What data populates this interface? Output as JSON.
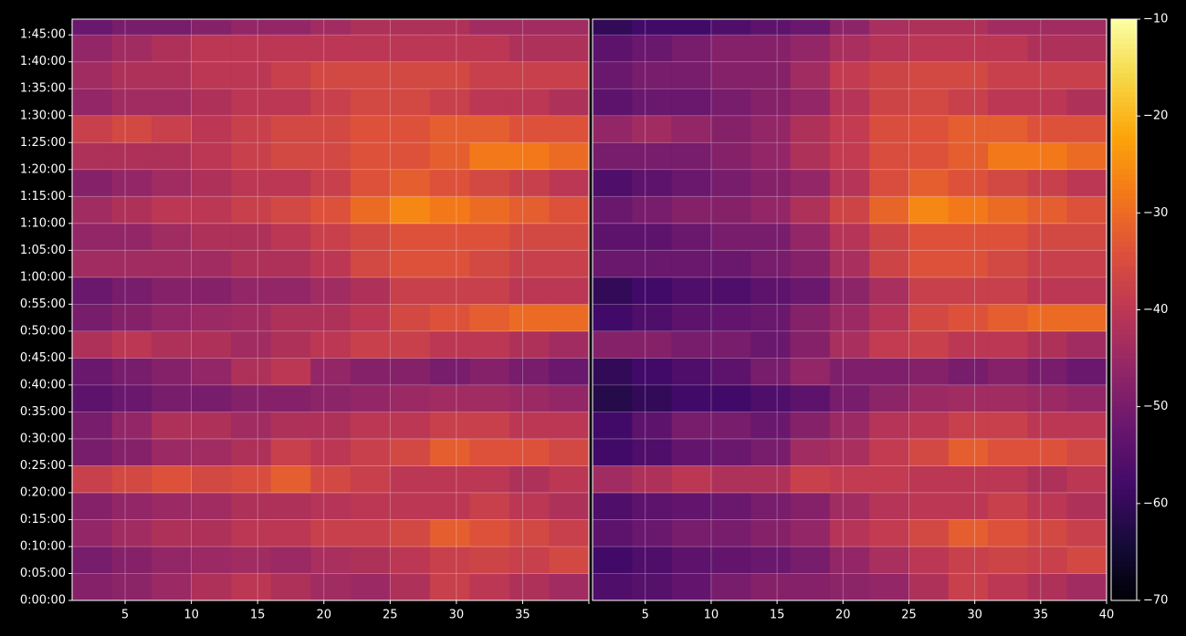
{
  "chart_data": {
    "type": "heatmap",
    "colormap": "inferno",
    "grid": true,
    "x_edges": [
      1,
      4,
      7,
      10,
      13,
      16,
      19,
      22,
      25,
      28,
      31,
      34,
      37,
      40
    ],
    "y_edges": [
      0,
      300,
      600,
      900,
      1200,
      1500,
      1800,
      2100,
      2400,
      2700,
      3000,
      3300,
      3600,
      3900,
      4200,
      4500,
      4800,
      5100,
      5400,
      5700,
      6000,
      6300,
      6600
    ],
    "xlim": [
      1,
      40
    ],
    "ylim": [
      0,
      6475
    ],
    "xticks": [
      5,
      10,
      15,
      20,
      25,
      30,
      35,
      40
    ],
    "yticks": [
      {
        "value": 0,
        "label": "0:00:00"
      },
      {
        "value": 300,
        "label": "0:05:00"
      },
      {
        "value": 600,
        "label": "0:10:00"
      },
      {
        "value": 900,
        "label": "0:15:00"
      },
      {
        "value": 1200,
        "label": "0:20:00"
      },
      {
        "value": 1500,
        "label": "0:25:00"
      },
      {
        "value": 1800,
        "label": "0:30:00"
      },
      {
        "value": 2100,
        "label": "0:35:00"
      },
      {
        "value": 2400,
        "label": "0:40:00"
      },
      {
        "value": 2700,
        "label": "0:45:00"
      },
      {
        "value": 3000,
        "label": "0:50:00"
      },
      {
        "value": 3300,
        "label": "0:55:00"
      },
      {
        "value": 3600,
        "label": "1:00:00"
      },
      {
        "value": 3900,
        "label": "1:05:00"
      },
      {
        "value": 4200,
        "label": "1:10:00"
      },
      {
        "value": 4500,
        "label": "1:15:00"
      },
      {
        "value": 4800,
        "label": "1:20:00"
      },
      {
        "value": 5100,
        "label": "1:25:00"
      },
      {
        "value": 5400,
        "label": "1:30:00"
      },
      {
        "value": 5700,
        "label": "1:35:00"
      },
      {
        "value": 6000,
        "label": "1:40:00"
      },
      {
        "value": 6300,
        "label": "1:45:00"
      }
    ],
    "colorbar": {
      "lim": [
        -70,
        -10
      ],
      "ticks": [
        {
          "value": -10,
          "label": "−10"
        },
        {
          "value": -20,
          "label": "−20"
        },
        {
          "value": -30,
          "label": "−30"
        },
        {
          "value": -40,
          "label": "−40"
        },
        {
          "value": -50,
          "label": "−50"
        },
        {
          "value": -60,
          "label": "−60"
        },
        {
          "value": -70,
          "label": "−70"
        }
      ]
    },
    "panels": [
      {
        "z": [
          [
            -48,
            -47,
            -45,
            -42,
            -40,
            -42,
            -44,
            -45,
            -42,
            -38,
            -40,
            -42,
            -44
          ],
          [
            -50,
            -48,
            -46,
            -45,
            -44,
            -45,
            -43,
            -42,
            -40,
            -38,
            -37,
            -38,
            -36
          ],
          [
            -46,
            -44,
            -42,
            -42,
            -40,
            -40,
            -38,
            -38,
            -36,
            -32,
            -34,
            -36,
            -38
          ],
          [
            -48,
            -46,
            -45,
            -44,
            -42,
            -42,
            -41,
            -40,
            -40,
            -40,
            -38,
            -40,
            -42
          ],
          [
            -38,
            -36,
            -34,
            -36,
            -35,
            -32,
            -36,
            -38,
            -40,
            -40,
            -40,
            -42,
            -40
          ],
          [
            -50,
            -48,
            -45,
            -44,
            -42,
            -38,
            -40,
            -38,
            -36,
            -32,
            -34,
            -34,
            -36
          ],
          [
            -50,
            -46,
            -42,
            -42,
            -44,
            -42,
            -42,
            -40,
            -40,
            -38,
            -38,
            -40,
            -40
          ],
          [
            -54,
            -52,
            -50,
            -50,
            -48,
            -48,
            -47,
            -46,
            -45,
            -44,
            -44,
            -45,
            -46
          ],
          [
            -52,
            -50,
            -48,
            -46,
            -42,
            -40,
            -46,
            -48,
            -48,
            -50,
            -48,
            -50,
            -52
          ],
          [
            -42,
            -40,
            -42,
            -42,
            -44,
            -42,
            -40,
            -38,
            -38,
            -40,
            -40,
            -42,
            -44
          ],
          [
            -50,
            -48,
            -46,
            -45,
            -44,
            -42,
            -42,
            -40,
            -36,
            -34,
            -32,
            -30,
            -30
          ],
          [
            -52,
            -50,
            -48,
            -48,
            -46,
            -46,
            -44,
            -42,
            -38,
            -38,
            -38,
            -40,
            -40
          ],
          [
            -44,
            -44,
            -44,
            -44,
            -42,
            -42,
            -40,
            -36,
            -34,
            -34,
            -36,
            -38,
            -38
          ],
          [
            -46,
            -46,
            -44,
            -42,
            -42,
            -40,
            -38,
            -36,
            -34,
            -34,
            -34,
            -36,
            -36
          ],
          [
            -44,
            -42,
            -40,
            -40,
            -38,
            -36,
            -34,
            -30,
            -26,
            -28,
            -30,
            -32,
            -34
          ],
          [
            -48,
            -46,
            -44,
            -42,
            -40,
            -40,
            -38,
            -34,
            -32,
            -34,
            -36,
            -38,
            -40
          ],
          [
            -42,
            -42,
            -42,
            -40,
            -38,
            -36,
            -36,
            -34,
            -34,
            -32,
            -28,
            -28,
            -30
          ],
          [
            -38,
            -36,
            -38,
            -40,
            -38,
            -36,
            -36,
            -34,
            -34,
            -32,
            -32,
            -34,
            -34
          ],
          [
            -46,
            -44,
            -44,
            -42,
            -40,
            -40,
            -38,
            -36,
            -36,
            -38,
            -40,
            -40,
            -42
          ],
          [
            -44,
            -42,
            -42,
            -40,
            -40,
            -38,
            -36,
            -36,
            -36,
            -36,
            -38,
            -38,
            -38
          ],
          [
            -46,
            -44,
            -42,
            -40,
            -40,
            -40,
            -40,
            -40,
            -40,
            -40,
            -40,
            -42,
            -42
          ],
          [
            -52,
            -50,
            -50,
            -48,
            -46,
            -46,
            -44,
            -42,
            -42,
            -42,
            -44,
            -44,
            -44
          ]
        ]
      },
      {
        "z": [
          [
            -56,
            -55,
            -53,
            -50,
            -48,
            -48,
            -47,
            -46,
            -42,
            -38,
            -40,
            -42,
            -44
          ],
          [
            -58,
            -56,
            -54,
            -53,
            -52,
            -50,
            -46,
            -43,
            -40,
            -38,
            -37,
            -38,
            -36
          ],
          [
            -54,
            -52,
            -50,
            -50,
            -48,
            -46,
            -41,
            -39,
            -36,
            -32,
            -34,
            -36,
            -38
          ],
          [
            -56,
            -54,
            -53,
            -52,
            -50,
            -48,
            -44,
            -41,
            -40,
            -40,
            -38,
            -40,
            -42
          ],
          [
            -44,
            -42,
            -40,
            -42,
            -42,
            -38,
            -39,
            -39,
            -40,
            -40,
            -40,
            -42,
            -40
          ],
          [
            -58,
            -56,
            -53,
            -52,
            -50,
            -44,
            -43,
            -39,
            -36,
            -32,
            -34,
            -34,
            -36
          ],
          [
            -58,
            -54,
            -50,
            -50,
            -52,
            -48,
            -45,
            -41,
            -40,
            -38,
            -38,
            -40,
            -40
          ],
          [
            -62,
            -60,
            -58,
            -58,
            -56,
            -54,
            -50,
            -47,
            -45,
            -44,
            -44,
            -45,
            -46
          ],
          [
            -60,
            -58,
            -56,
            -54,
            -50,
            -46,
            -49,
            -49,
            -48,
            -50,
            -48,
            -50,
            -52
          ],
          [
            -48,
            -48,
            -50,
            -50,
            -52,
            -48,
            -43,
            -39,
            -38,
            -40,
            -40,
            -42,
            -44
          ],
          [
            -58,
            -56,
            -54,
            -53,
            -52,
            -48,
            -45,
            -41,
            -36,
            -34,
            -32,
            -30,
            -30
          ],
          [
            -60,
            -58,
            -56,
            -56,
            -54,
            -52,
            -47,
            -43,
            -38,
            -38,
            -38,
            -40,
            -40
          ],
          [
            -52,
            -52,
            -52,
            -52,
            -50,
            -48,
            -43,
            -37,
            -34,
            -34,
            -36,
            -38,
            -38
          ],
          [
            -54,
            -54,
            -52,
            -50,
            -50,
            -46,
            -41,
            -37,
            -34,
            -34,
            -34,
            -36,
            -36
          ],
          [
            -52,
            -50,
            -48,
            -48,
            -46,
            -42,
            -37,
            -31,
            -26,
            -28,
            -30,
            -32,
            -34
          ],
          [
            -56,
            -54,
            -52,
            -50,
            -48,
            -46,
            -41,
            -35,
            -32,
            -34,
            -36,
            -38,
            -40
          ],
          [
            -50,
            -50,
            -50,
            -48,
            -46,
            -42,
            -39,
            -35,
            -34,
            -32,
            -28,
            -28,
            -30
          ],
          [
            -46,
            -44,
            -46,
            -48,
            -46,
            -42,
            -39,
            -35,
            -34,
            -32,
            -32,
            -34,
            -34
          ],
          [
            -54,
            -52,
            -52,
            -50,
            -48,
            -46,
            -41,
            -37,
            -36,
            -38,
            -40,
            -40,
            -42
          ],
          [
            -52,
            -50,
            -50,
            -48,
            -48,
            -44,
            -39,
            -37,
            -36,
            -36,
            -38,
            -38,
            -38
          ],
          [
            -54,
            -52,
            -50,
            -48,
            -48,
            -46,
            -43,
            -41,
            -40,
            -40,
            -40,
            -42,
            -42
          ],
          [
            -60,
            -58,
            -58,
            -56,
            -54,
            -52,
            -47,
            -43,
            -42,
            -42,
            -44,
            -44,
            -44
          ]
        ]
      }
    ]
  }
}
